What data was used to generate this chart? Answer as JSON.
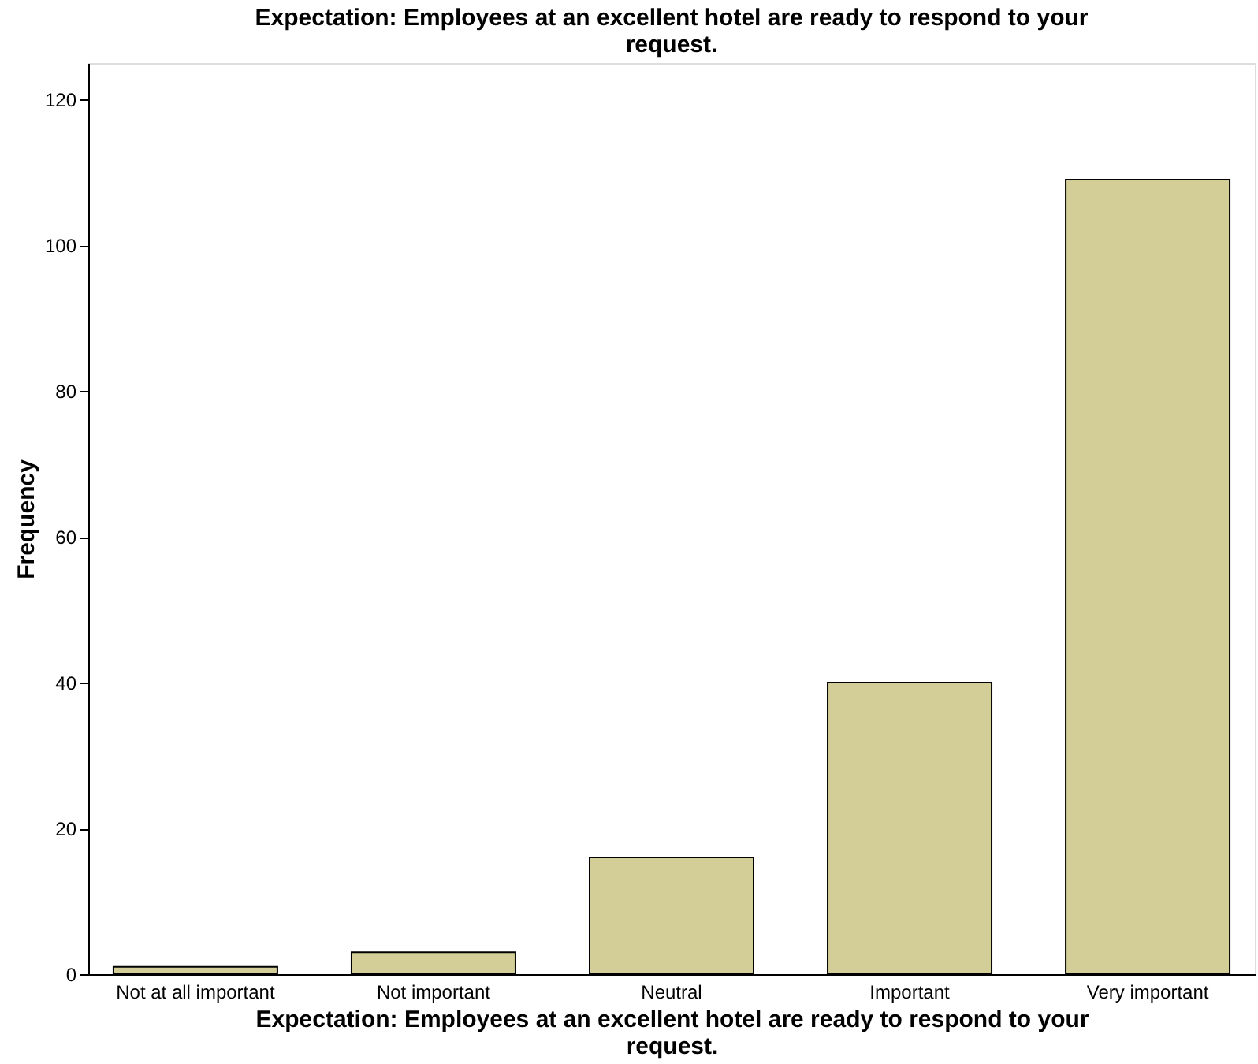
{
  "chart_data": {
    "type": "bar",
    "title": "Expectation: Employees at an excellent hotel are ready to respond to your request.",
    "xlabel": "Expectation: Employees at an excellent hotel are ready to respond to your request.",
    "ylabel": "Frequency",
    "categories": [
      "Not at all important",
      "Not important",
      "Neutral",
      "Important",
      "Very important"
    ],
    "values": [
      1,
      3,
      16,
      40,
      109
    ],
    "color": "#d3ce97",
    "ylim": [
      0,
      125
    ],
    "yticks": [
      0,
      20,
      40,
      60,
      80,
      100,
      120
    ],
    "grid": false
  }
}
